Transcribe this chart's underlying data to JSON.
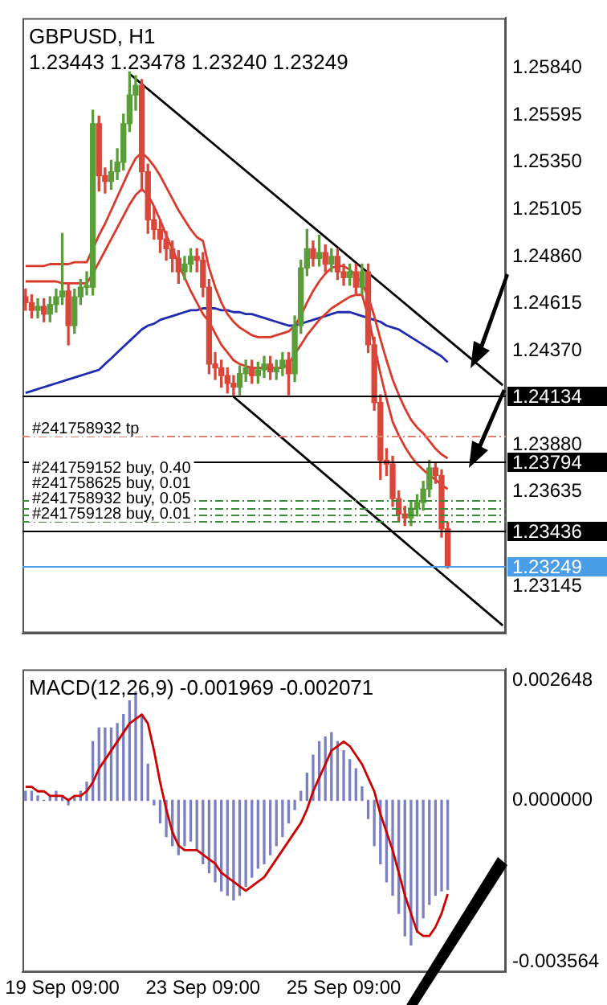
{
  "chart_data": [
    {
      "type": "candlestick",
      "title": "GBPUSD, H1",
      "subtitle": "1.23443 1.23478 1.23240 1.23249",
      "categories": [
        null,
        null,
        null,
        null,
        null,
        null,
        null,
        null,
        null,
        null,
        null,
        null,
        null,
        null,
        null,
        null,
        null,
        null,
        null,
        null,
        null,
        null,
        null,
        null,
        null,
        null,
        null,
        null,
        null,
        null,
        null,
        null,
        null,
        null,
        null,
        null,
        null,
        null,
        null,
        null,
        null,
        null,
        null,
        null,
        null,
        null,
        null,
        null,
        null,
        null,
        null,
        null,
        null,
        null,
        null,
        null,
        null,
        null,
        null,
        null,
        null,
        null,
        null,
        null,
        null,
        null,
        null,
        null,
        null,
        null,
        null,
        null,
        null,
        null,
        null,
        null,
        null,
        null,
        null
      ],
      "ohlc": [
        [
          1.2465,
          1.2469,
          1.2458,
          1.2462
        ],
        [
          1.2462,
          1.2466,
          1.2454,
          1.2458
        ],
        [
          1.2458,
          1.2464,
          1.2454,
          1.246
        ],
        [
          1.246,
          1.2464,
          1.2452,
          1.2456
        ],
        [
          1.2456,
          1.2465,
          1.2452,
          1.2461
        ],
        [
          1.2461,
          1.2469,
          1.2457,
          1.2465
        ],
        [
          1.2465,
          1.2498,
          1.2461,
          1.2468
        ],
        [
          1.2468,
          1.2472,
          1.244,
          1.245
        ],
        [
          1.245,
          1.2469,
          1.2446,
          1.2465
        ],
        [
          1.2465,
          1.2474,
          1.2461,
          1.247
        ],
        [
          1.247,
          1.2478,
          1.2466,
          1.247
        ],
        [
          1.247,
          1.2562,
          1.2466,
          1.2555
        ],
        [
          1.2555,
          1.2559,
          1.252,
          1.2528
        ],
        [
          1.2528,
          1.2532,
          1.2519,
          1.2525
        ],
        [
          1.2525,
          1.2536,
          1.2521,
          1.253
        ],
        [
          1.253,
          1.2542,
          1.2526,
          1.2535
        ],
        [
          1.2535,
          1.256,
          1.2531,
          1.2555
        ],
        [
          1.2555,
          1.2582,
          1.2551,
          1.257
        ],
        [
          1.257,
          1.258,
          1.2562,
          1.2575
        ],
        [
          1.2575,
          1.2578,
          1.252,
          1.253
        ],
        [
          1.253,
          1.2534,
          1.2498,
          1.2505
        ],
        [
          1.2505,
          1.2512,
          1.2495,
          1.25
        ],
        [
          1.25,
          1.2505,
          1.2488,
          1.2495
        ],
        [
          1.2495,
          1.2499,
          1.2484,
          1.249
        ],
        [
          1.249,
          1.2494,
          1.2478,
          1.2485
        ],
        [
          1.2485,
          1.2489,
          1.2472,
          1.2478
        ],
        [
          1.2478,
          1.2486,
          1.2474,
          1.2482
        ],
        [
          1.2482,
          1.249,
          1.2478,
          1.2486
        ],
        [
          1.2486,
          1.249,
          1.2478,
          1.2484
        ],
        [
          1.2484,
          1.2488,
          1.2465,
          1.247
        ],
        [
          1.247,
          1.2474,
          1.2425,
          1.243
        ],
        [
          1.243,
          1.2436,
          1.2422,
          1.2428
        ],
        [
          1.2428,
          1.2432,
          1.2418,
          1.2424
        ],
        [
          1.2424,
          1.2428,
          1.2415,
          1.242
        ],
        [
          1.242,
          1.2424,
          1.2413,
          1.2418
        ],
        [
          1.2418,
          1.2429,
          1.2414,
          1.2425
        ],
        [
          1.2425,
          1.2432,
          1.2421,
          1.2428
        ],
        [
          1.2428,
          1.2432,
          1.242,
          1.2424
        ],
        [
          1.2424,
          1.2431,
          1.242,
          1.2427
        ],
        [
          1.2427,
          1.2434,
          1.2423,
          1.243
        ],
        [
          1.243,
          1.2434,
          1.2422,
          1.2426
        ],
        [
          1.2426,
          1.2432,
          1.2422,
          1.2428
        ],
        [
          1.2428,
          1.2436,
          1.2424,
          1.2432
        ],
        [
          1.2432,
          1.2436,
          1.2414,
          1.2425
        ],
        [
          1.2425,
          1.2455,
          1.2421,
          1.245
        ],
        [
          1.245,
          1.2484,
          1.2446,
          1.248
        ],
        [
          1.248,
          1.25,
          1.2476,
          1.249
        ],
        [
          1.249,
          1.2494,
          1.2481,
          1.2485
        ],
        [
          1.2485,
          1.2497,
          1.2481,
          1.2488
        ],
        [
          1.2488,
          1.2492,
          1.2478,
          1.2482
        ],
        [
          1.2482,
          1.249,
          1.2478,
          1.2486
        ],
        [
          1.2486,
          1.249,
          1.2474,
          1.2478
        ],
        [
          1.2478,
          1.2482,
          1.2471,
          1.2475
        ],
        [
          1.2475,
          1.2482,
          1.2471,
          1.2478
        ],
        [
          1.2478,
          1.2482,
          1.2466,
          1.247
        ],
        [
          1.247,
          1.2482,
          1.2466,
          1.2478
        ],
        [
          1.2478,
          1.2482,
          1.2436,
          1.244
        ],
        [
          1.244,
          1.2444,
          1.2406,
          1.241
        ],
        [
          1.241,
          1.2414,
          1.237,
          1.238
        ],
        [
          1.238,
          1.2386,
          1.2372,
          1.2378
        ],
        [
          1.2378,
          1.2382,
          1.2356,
          1.236
        ],
        [
          1.236,
          1.2364,
          1.2348,
          1.2352
        ],
        [
          1.2352,
          1.2356,
          1.2346,
          1.235
        ],
        [
          1.235,
          1.2359,
          1.2346,
          1.2355
        ],
        [
          1.2355,
          1.2362,
          1.2351,
          1.2358
        ],
        [
          1.2358,
          1.2369,
          1.2354,
          1.2365
        ],
        [
          1.2365,
          1.238,
          1.2361,
          1.2376
        ],
        [
          1.2376,
          1.2379,
          1.2368,
          1.2372
        ],
        [
          1.2372,
          1.2375,
          1.234,
          1.23443
        ],
        [
          1.23443,
          1.23478,
          1.2324,
          1.23249
        ],
        null,
        null,
        null,
        null,
        null,
        null,
        null,
        null,
        null
      ],
      "series": [
        {
          "type": "line",
          "color": "#d93a2b",
          "values": [
            1.2481,
            1.2481,
            1.2481,
            1.2481,
            1.2482,
            1.2482,
            1.2482,
            1.2482,
            1.2483,
            1.2483,
            1.2483,
            1.249,
            1.2497,
            1.2503,
            1.251,
            1.2517,
            1.2524,
            1.2531,
            1.2537,
            1.254,
            1.2537,
            1.2533,
            1.2528,
            1.2522,
            1.2516,
            1.251,
            1.2505,
            1.25,
            1.2496,
            1.2494,
            1.248,
            1.247,
            1.2462,
            1.2456,
            1.2452,
            1.2449,
            1.2447,
            1.2445,
            1.2444,
            1.2444,
            1.2444,
            1.2445,
            1.2446,
            1.2447,
            1.245,
            1.2455,
            1.2462,
            1.2468,
            1.2473,
            1.2477,
            1.248,
            1.2481,
            1.2481,
            1.2479,
            1.2476,
            1.2472,
            1.2465,
            1.2455,
            1.2443,
            1.2432,
            1.2422,
            1.2414,
            1.2407,
            1.2401,
            1.2397,
            1.2394,
            1.239,
            1.2386,
            1.2383,
            1.2381,
            null,
            null,
            null,
            null,
            null,
            null,
            null,
            null,
            null
          ]
        },
        {
          "type": "line",
          "color": "#d93a2b",
          "values": [
            1.2473,
            1.2473,
            1.2473,
            1.2473,
            1.2473,
            1.2473,
            1.2472,
            1.2472,
            1.2472,
            1.2472,
            1.2472,
            1.2477,
            1.2483,
            1.2489,
            1.2495,
            1.2501,
            1.2507,
            1.2513,
            1.2518,
            1.2521,
            1.2518,
            1.2512,
            1.2505,
            1.2497,
            1.249,
            1.2482,
            1.2475,
            1.2468,
            1.2462,
            1.2456,
            1.2452,
            1.2446,
            1.244,
            1.2436,
            1.2432,
            1.243,
            1.2429,
            1.2428,
            1.2428,
            1.2428,
            1.2428,
            1.2428,
            1.2428,
            1.243,
            1.2435,
            1.244,
            1.2445,
            1.2449,
            1.2453,
            1.2456,
            1.2459,
            1.2461,
            1.2463,
            1.2465,
            1.2466,
            1.2466,
            1.2455,
            1.244,
            1.2425,
            1.2412,
            1.24,
            1.2393,
            1.2387,
            1.2382,
            1.2378,
            1.2375,
            1.2372,
            1.237,
            1.2367,
            1.2365,
            null,
            null,
            null,
            null,
            null,
            null,
            null,
            null,
            null
          ]
        },
        {
          "type": "line",
          "color": "#1f2bb0",
          "values": [
            1.2415,
            1.2416,
            1.2417,
            1.2418,
            1.2419,
            1.242,
            1.2421,
            1.2422,
            1.2423,
            1.2424,
            1.2425,
            1.2426,
            1.2427,
            1.243,
            1.2433,
            1.2436,
            1.2439,
            1.2442,
            1.2445,
            1.2448,
            1.245,
            1.2451,
            1.2453,
            1.2454,
            1.2455,
            1.2456,
            1.2457,
            1.2458,
            1.2458,
            1.2459,
            1.2459,
            1.2459,
            1.2458,
            1.2458,
            1.2457,
            1.2457,
            1.2456,
            1.2456,
            1.2455,
            1.2454,
            1.2453,
            1.2452,
            1.2451,
            1.245,
            1.245,
            1.2451,
            1.2452,
            1.2453,
            1.2454,
            1.2455,
            1.2456,
            1.2457,
            1.2457,
            1.2457,
            1.2456,
            1.2455,
            1.2454,
            1.2453,
            1.2452,
            1.245,
            1.2449,
            1.2448,
            1.2446,
            1.2444,
            1.2442,
            1.244,
            1.2438,
            1.2436,
            1.2434,
            1.2431,
            null,
            null,
            null,
            null,
            null,
            null,
            null,
            null,
            null
          ]
        },
        {
          "type": "line",
          "color": "#000000",
          "values": [
            null,
            null,
            null,
            null,
            null,
            null,
            null,
            null,
            null,
            null,
            null,
            null,
            null,
            null,
            null,
            null,
            null,
            1.2581,
            null,
            null,
            null,
            null,
            null,
            null,
            null,
            null,
            null,
            null,
            null,
            null,
            null,
            null,
            null,
            null,
            null,
            null,
            null,
            null,
            null,
            null,
            null,
            null,
            null,
            null,
            null,
            null,
            null,
            null,
            null,
            null,
            null,
            null,
            null,
            null,
            null,
            null,
            null,
            null,
            null,
            null,
            null,
            null,
            null,
            null,
            null,
            null,
            null,
            null,
            null,
            null,
            null,
            null,
            null,
            null,
            null,
            null,
            null,
            null,
            1.2419
          ]
        },
        {
          "type": "line",
          "color": "#000000",
          "values": [
            null,
            null,
            null,
            null,
            null,
            null,
            null,
            null,
            null,
            null,
            null,
            null,
            null,
            null,
            null,
            null,
            null,
            null,
            null,
            null,
            null,
            null,
            null,
            null,
            null,
            null,
            null,
            null,
            null,
            null,
            null,
            null,
            null,
            null,
            1.2413,
            null,
            null,
            null,
            null,
            null,
            null,
            null,
            null,
            null,
            null,
            null,
            null,
            null,
            null,
            null,
            null,
            null,
            null,
            null,
            null,
            null,
            null,
            null,
            null,
            null,
            null,
            null,
            null,
            null,
            null,
            null,
            null,
            null,
            null,
            null,
            null,
            null,
            null,
            null,
            null,
            null,
            null,
            null,
            1.2294
          ]
        }
      ],
      "ylim": [
        1.229,
        1.261
      ],
      "yticks": [
        {
          "value": 1.2584,
          "label": "1.25840"
        },
        {
          "value": 1.25595,
          "label": "1.25595"
        },
        {
          "value": 1.2535,
          "label": "1.25350"
        },
        {
          "value": 1.25105,
          "label": "1.25105"
        },
        {
          "value": 1.2486,
          "label": "1.24860"
        },
        {
          "value": 1.24615,
          "label": "1.24615"
        },
        {
          "value": 1.2437,
          "label": "1.24370"
        },
        {
          "value": 1.2388,
          "label": "1.23880"
        },
        {
          "value": 1.23635,
          "label": "1.23635"
        },
        {
          "value": 1.23145,
          "label": "1.23145"
        }
      ],
      "ref_lines": [
        {
          "axis": "y",
          "value": 1.24134,
          "label": "1.24134",
          "color": "#000000",
          "line_style": "solid"
        },
        {
          "axis": "y",
          "value": 1.23794,
          "label": "1.23794",
          "color": "#000000",
          "line_style": "solid"
        },
        {
          "axis": "y",
          "value": 1.23436,
          "label": "1.23436",
          "color": "#000000",
          "line_style": "solid"
        },
        {
          "axis": "y",
          "value": 1.23249,
          "label": "1.23249",
          "color": "#4a9ee8",
          "line_style": "solid"
        },
        {
          "axis": "y",
          "value": 1.2393,
          "label": "#241758932 tp",
          "color": "#e08070",
          "line_style": "dashed"
        },
        {
          "axis": "y",
          "value": 1.23596,
          "label": "#241759152 buy, 0.40",
          "color": "#3c8c3c",
          "line_style": "dashed"
        },
        {
          "axis": "y",
          "value": 1.23549,
          "label": "#241758625 buy, 0.01",
          "color": "#3c8c3c",
          "line_style": "dashed"
        },
        {
          "axis": "y",
          "value": 1.23518,
          "label": "#241758932 buy, 0.05",
          "color": "#3c8c3c",
          "line_style": "dashed"
        },
        {
          "axis": "y",
          "value": 1.23486,
          "label": "#241759128 buy, 0.01",
          "color": "#3c8c3c",
          "line_style": "dashed"
        }
      ],
      "tick_labels": "y",
      "grid": false,
      "legend": false
    },
    {
      "type": "bar",
      "title": "MACD(12,26,9) -0.001969 -0.002071",
      "categories": [
        null,
        null,
        null,
        null,
        null,
        null,
        "19 Sep 09:00",
        null,
        null,
        null,
        null,
        null,
        null,
        null,
        null,
        null,
        null,
        null,
        null,
        null,
        null,
        null,
        null,
        null,
        null,
        null,
        null,
        null,
        null,
        "23 Sep 09:00",
        null,
        null,
        null,
        null,
        null,
        null,
        null,
        null,
        null,
        null,
        null,
        null,
        null,
        null,
        null,
        null,
        null,
        null,
        null,
        null,
        null,
        null,
        "25 Sep 09:00",
        null,
        null,
        null,
        null,
        null,
        null,
        null,
        null,
        null,
        null,
        null,
        null,
        null,
        null,
        null,
        null,
        null,
        null,
        null,
        null,
        null,
        null,
        null,
        null,
        null,
        null
      ],
      "series": [
        {
          "type": "bar",
          "color": "#7b80c2",
          "values": [
            0.0002,
            0.0002,
            0.0001,
            0,
            0.0001,
            0.0002,
            0.0001,
            -0.0001,
            0.0001,
            0.0002,
            0.0004,
            0.0013,
            0.0016,
            0.0016,
            0.0016,
            0.0017,
            0.0019,
            0.0022,
            0.0024,
            0.0019,
            0.0008,
            -0.0001,
            -0.0005,
            -0.0008,
            -0.001,
            -0.0012,
            -0.001,
            -0.0009,
            -0.0011,
            -0.0014,
            -0.0016,
            -0.0018,
            -0.002,
            -0.0021,
            -0.0022,
            -0.0021,
            -0.0019,
            -0.0017,
            -0.0015,
            -0.0014,
            -0.0012,
            -0.001,
            -0.0008,
            -0.0005,
            -0.0002,
            0.0002,
            0.0006,
            0.001,
            0.0013,
            0.0014,
            0.0015,
            0.0013,
            0.0011,
            0.0009,
            0.0007,
            0.0003,
            -0.0004,
            -0.001,
            -0.0014,
            -0.0018,
            -0.0021,
            -0.0025,
            -0.003,
            -0.0032,
            -0.0029,
            -0.0026,
            -0.0023,
            -0.0021,
            -0.002,
            -0.001969,
            null,
            null,
            null,
            null,
            null,
            null,
            null,
            null,
            null
          ]
        },
        {
          "type": "line",
          "color": "#cc0000",
          "values": [
            0.0003,
            0.0003,
            0.0002,
            0.0002,
            0.0001,
            0.0001,
            0.0001,
            0,
            0.0001,
            0.0001,
            0.0002,
            0.0004,
            0.0007,
            0.0009,
            0.0011,
            0.0013,
            0.0015,
            0.0017,
            0.0018,
            0.0019,
            0.0017,
            0.0011,
            0.0004,
            -0.0002,
            -0.0007,
            -0.001,
            -0.0011,
            -0.0011,
            -0.0011,
            -0.0012,
            -0.0013,
            -0.0014,
            -0.0016,
            -0.0017,
            -0.0018,
            -0.0019,
            -0.002,
            -0.0019,
            -0.0018,
            -0.0017,
            -0.0015,
            -0.0013,
            -0.0011,
            -0.0009,
            -0.0007,
            -0.0005,
            -0.0002,
            0.0002,
            0.0005,
            0.0008,
            0.0011,
            0.0012,
            0.0013,
            0.0012,
            0.001,
            0.0008,
            0.0005,
            0.0002,
            -0.0003,
            -0.0007,
            -0.0011,
            -0.0016,
            -0.0021,
            -0.0025,
            -0.0029,
            -0.003,
            -0.003,
            -0.0028,
            -0.0025,
            -0.002071,
            null,
            null,
            null,
            null,
            null,
            null,
            null,
            null,
            null
          ]
        }
      ],
      "ylim": [
        -0.0038,
        0.0029
      ],
      "yticks": [
        0.002648,
        {
          "value": 0,
          "label": "0.000000"
        },
        -0.003564
      ],
      "grid": false,
      "legend": false
    }
  ]
}
